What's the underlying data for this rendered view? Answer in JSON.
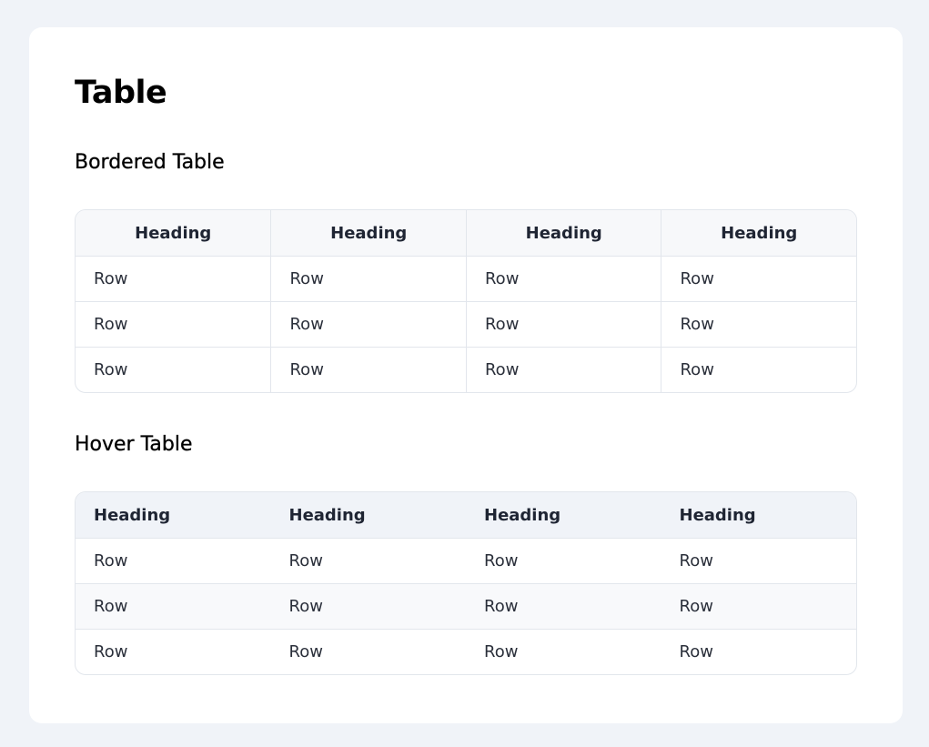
{
  "page": {
    "title": "Table"
  },
  "bordered_table": {
    "title": "Bordered Table",
    "headers": [
      "Heading",
      "Heading",
      "Heading",
      "Heading"
    ],
    "rows": [
      [
        "Row",
        "Row",
        "Row",
        "Row"
      ],
      [
        "Row",
        "Row",
        "Row",
        "Row"
      ],
      [
        "Row",
        "Row",
        "Row",
        "Row"
      ]
    ]
  },
  "hover_table": {
    "title": "Hover Table",
    "headers": [
      "Heading",
      "Heading",
      "Heading",
      "Heading"
    ],
    "rows": [
      [
        "Row",
        "Row",
        "Row",
        "Row"
      ],
      [
        "Row",
        "Row",
        "Row",
        "Row"
      ],
      [
        "Row",
        "Row",
        "Row",
        "Row"
      ]
    ]
  }
}
